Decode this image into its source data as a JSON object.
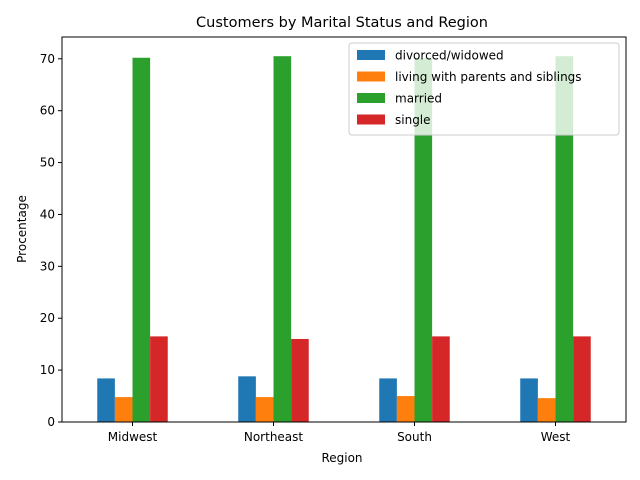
{
  "chart_data": {
    "type": "bar",
    "title": "Customers by Marital Status and Region",
    "xlabel": "Region",
    "ylabel": "Procentage",
    "categories": [
      "Midwest",
      "Northeast",
      "South",
      "West"
    ],
    "ylim": [
      0,
      74.2
    ],
    "yticks": [
      0,
      10,
      20,
      30,
      40,
      50,
      60,
      70
    ],
    "grid": false,
    "legend_position": "top-right",
    "series": [
      {
        "name": "divorced/widowed",
        "color": "#1f77b4",
        "values": [
          8.4,
          8.8,
          8.4,
          8.4
        ]
      },
      {
        "name": "living with parents and siblings",
        "color": "#ff7f0e",
        "values": [
          4.8,
          4.8,
          5.0,
          4.6
        ]
      },
      {
        "name": "married",
        "color": "#2ca02c",
        "values": [
          70.2,
          70.5,
          70.1,
          70.5
        ]
      },
      {
        "name": "single",
        "color": "#d62728",
        "values": [
          16.5,
          16.0,
          16.5,
          16.5
        ]
      }
    ]
  }
}
